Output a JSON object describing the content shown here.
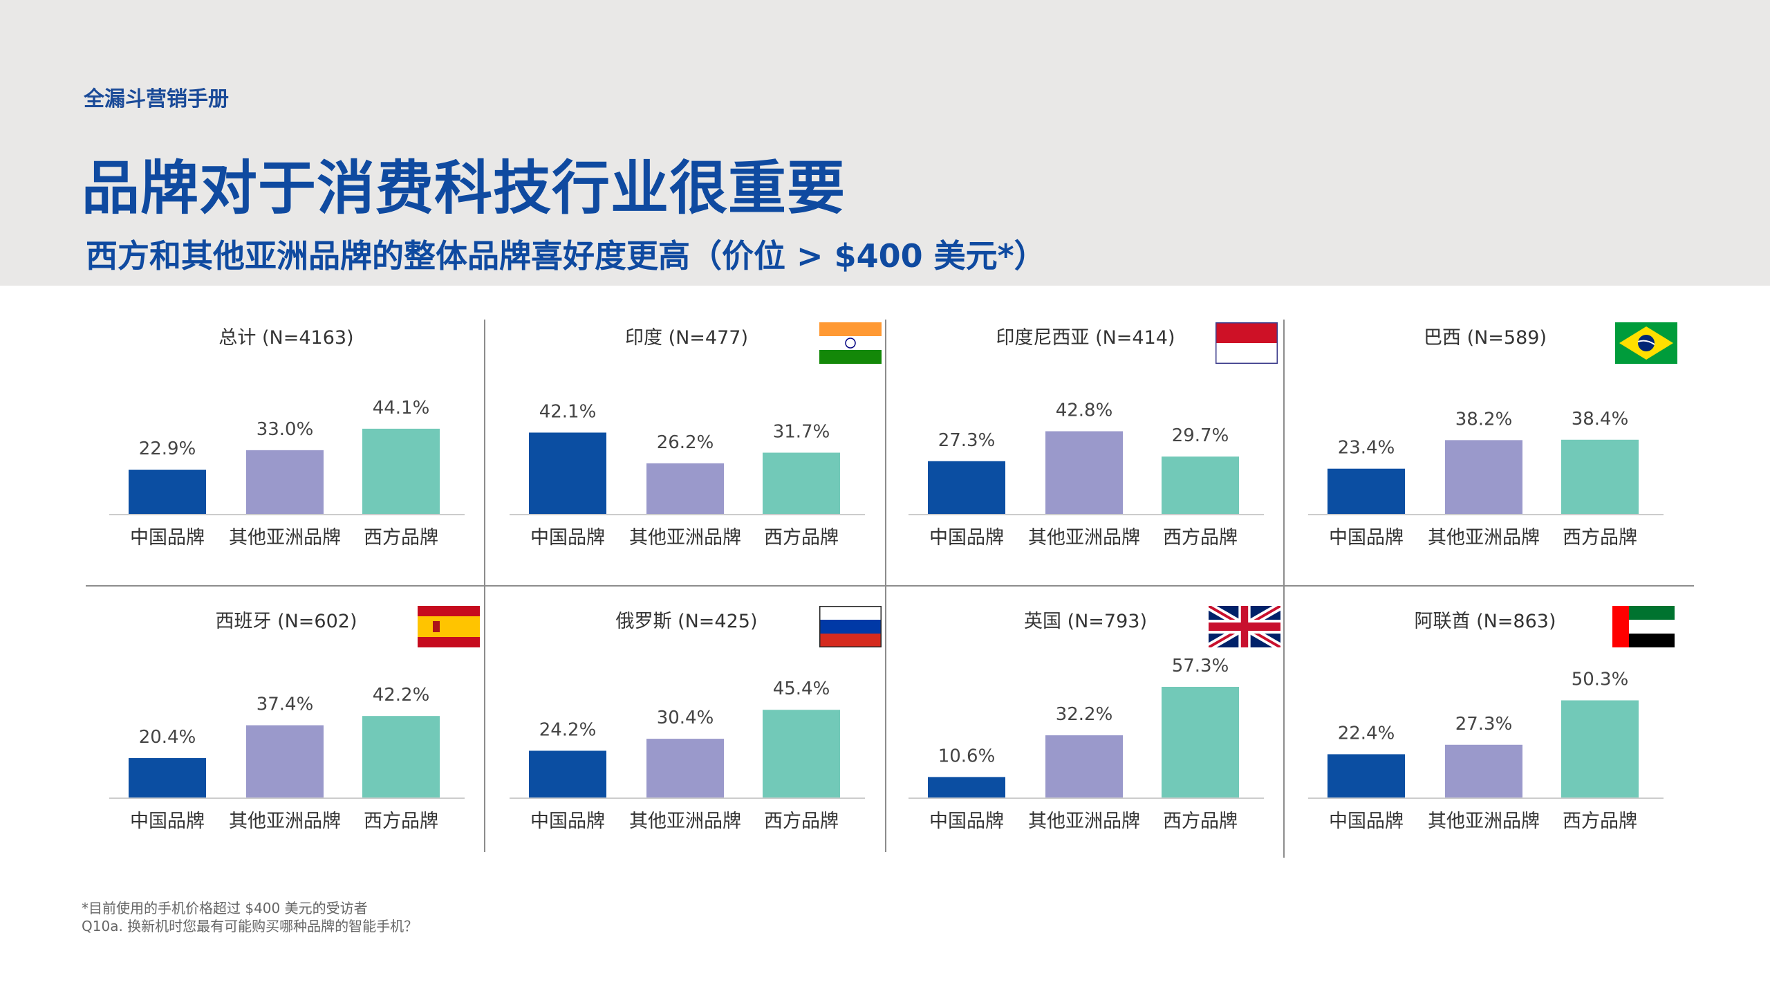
{
  "header": {
    "kicker": "全漏斗营销手册",
    "title": "品牌对于消费科技行业很重要",
    "subtitle": "西方和其他亚洲品牌的整体品牌喜好度更高（价位 > $400 美元*）"
  },
  "colors": {
    "chinese": "#0b4ea2",
    "other_asian": "#9a99cb",
    "western": "#72c9b8",
    "baseline": "#cccccc"
  },
  "chart_data": [
    {
      "type": "bar",
      "title": "总计 (N=4163)",
      "categories": [
        "中国品牌",
        "其他亚洲品牌",
        "西方品牌"
      ],
      "values": [
        22.9,
        33.0,
        44.1
      ],
      "labels": [
        "22.9%",
        "33.0%",
        "44.1%"
      ],
      "ylim": [
        0,
        60
      ]
    },
    {
      "type": "bar",
      "title": "印度 (N=477)",
      "flag": "india-flag-icon",
      "categories": [
        "中国品牌",
        "其他亚洲品牌",
        "西方品牌"
      ],
      "values": [
        42.1,
        26.2,
        31.7
      ],
      "labels": [
        "42.1%",
        "26.2%",
        "31.7%"
      ],
      "ylim": [
        0,
        60
      ]
    },
    {
      "type": "bar",
      "title": "印度尼西亚 (N=414)",
      "flag": "indonesia-flag-icon",
      "categories": [
        "中国品牌",
        "其他亚洲品牌",
        "西方品牌"
      ],
      "values": [
        27.3,
        42.8,
        29.7
      ],
      "labels": [
        "27.3%",
        "42.8%",
        "29.7%"
      ],
      "ylim": [
        0,
        60
      ]
    },
    {
      "type": "bar",
      "title": "巴西 (N=589)",
      "flag": "brazil-flag-icon",
      "categories": [
        "中国品牌",
        "其他亚洲品牌",
        "西方品牌"
      ],
      "values": [
        23.4,
        38.2,
        38.4
      ],
      "labels": [
        "23.4%",
        "38.2%",
        "38.4%"
      ],
      "ylim": [
        0,
        60
      ]
    },
    {
      "type": "bar",
      "title": "西班牙 (N=602)",
      "flag": "spain-flag-icon",
      "categories": [
        "中国品牌",
        "其他亚洲品牌",
        "西方品牌"
      ],
      "values": [
        20.4,
        37.4,
        42.2
      ],
      "labels": [
        "20.4%",
        "37.4%",
        "42.2%"
      ],
      "ylim": [
        0,
        60
      ]
    },
    {
      "type": "bar",
      "title": "俄罗斯 (N=425)",
      "flag": "russia-flag-icon",
      "categories": [
        "中国品牌",
        "其他亚洲品牌",
        "西方品牌"
      ],
      "values": [
        24.2,
        30.4,
        45.4
      ],
      "labels": [
        "24.2%",
        "30.4%",
        "45.4%"
      ],
      "ylim": [
        0,
        60
      ]
    },
    {
      "type": "bar",
      "title": "英国 (N=793)",
      "flag": "uk-flag-icon",
      "categories": [
        "中国品牌",
        "其他亚洲品牌",
        "西方品牌"
      ],
      "values": [
        10.6,
        32.2,
        57.3
      ],
      "labels": [
        "10.6%",
        "32.2%",
        "57.3%"
      ],
      "ylim": [
        0,
        60
      ]
    },
    {
      "type": "bar",
      "title": "阿联酋 (N=863)",
      "flag": "uae-flag-icon",
      "categories": [
        "中国品牌",
        "其他亚洲品牌",
        "西方品牌"
      ],
      "values": [
        22.4,
        27.3,
        50.3
      ],
      "labels": [
        "22.4%",
        "27.3%",
        "50.3%"
      ],
      "ylim": [
        0,
        60
      ]
    }
  ],
  "footnotes": {
    "note1": "*目前使用的手机价格超过 $400 美元的受访者",
    "note2": "Q10a. 换新机时您最有可能购买哪种品牌的智能手机？"
  }
}
